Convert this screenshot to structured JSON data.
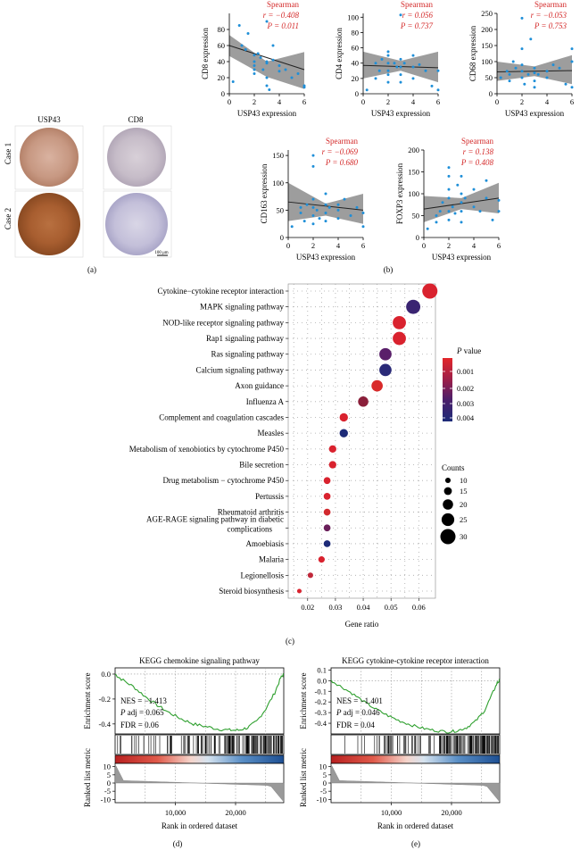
{
  "colors": {
    "red": "#d42a2a",
    "blue": "#1f8fd8",
    "band": "#8c8c8c",
    "dot_grid": "#a8a8a8",
    "navy": "#1d2b78",
    "purple": "#5a1f6a",
    "green": "#2fa02f"
  },
  "panel_a": {
    "col_labels": [
      "USP43",
      "CD8"
    ],
    "row_labels": [
      "Case 1",
      "Case 2"
    ],
    "scale_bar": "100 μm",
    "panel_label": "(a)"
  },
  "panel_b_label": "(b)",
  "panel_c_label": "(c)",
  "panel_d_label": "(d)",
  "panel_e_label": "(e)",
  "chart_data": [
    {
      "type": "scatter",
      "id": "cd8",
      "xlabel": "USP43 expression",
      "ylabel": "CD8 expression",
      "xlim": [
        0,
        6
      ],
      "ylim": [
        0,
        100
      ],
      "xticks": [
        0,
        2,
        4,
        6
      ],
      "yticks": [
        0,
        20,
        40,
        60,
        80
      ],
      "stat_label": "Spearman",
      "r": "r = −0.408",
      "p": "P = 0.011",
      "fit": [
        60,
        30
      ],
      "ci": [
        [
          47,
          73
        ],
        [
          21,
          40
        ],
        [
          6,
          52
        ]
      ],
      "points": [
        [
          0.3,
          15
        ],
        [
          0.8,
          85
        ],
        [
          1,
          60
        ],
        [
          1.3,
          55
        ],
        [
          1.5,
          75
        ],
        [
          2,
          48
        ],
        [
          2,
          40
        ],
        [
          2,
          35
        ],
        [
          2,
          30
        ],
        [
          2,
          25
        ],
        [
          2.3,
          50
        ],
        [
          2.5,
          45
        ],
        [
          2.7,
          30
        ],
        [
          3,
          90
        ],
        [
          3,
          40
        ],
        [
          3,
          38
        ],
        [
          3,
          20
        ],
        [
          3,
          10
        ],
        [
          3.2,
          5
        ],
        [
          3.5,
          60
        ],
        [
          3.5,
          42
        ],
        [
          4,
          35
        ],
        [
          4,
          28
        ],
        [
          4.5,
          30
        ],
        [
          5,
          20
        ],
        [
          5.5,
          25
        ],
        [
          6,
          10
        ],
        [
          6,
          8
        ]
      ]
    },
    {
      "type": "scatter",
      "id": "cd4",
      "xlabel": "USP43 expression",
      "ylabel": "CD4 expression",
      "xlim": [
        0,
        6
      ],
      "ylim": [
        0,
        105
      ],
      "xticks": [
        0,
        2,
        4,
        6
      ],
      "yticks": [
        0,
        20,
        40,
        60,
        80,
        100
      ],
      "stat_label": "Spearman",
      "r": "r = 0.056",
      "p": "P = 0.737",
      "fit": [
        37,
        34
      ],
      "ci": [
        [
          20,
          55
        ],
        [
          30,
          43
        ],
        [
          15,
          55
        ]
      ],
      "points": [
        [
          0.3,
          5
        ],
        [
          1,
          20
        ],
        [
          1,
          40
        ],
        [
          1.3,
          30
        ],
        [
          1.5,
          45
        ],
        [
          2,
          55
        ],
        [
          2,
          50
        ],
        [
          2,
          40
        ],
        [
          2,
          30
        ],
        [
          2,
          25
        ],
        [
          2,
          15
        ],
        [
          2.5,
          40
        ],
        [
          2.7,
          35
        ],
        [
          3,
          103
        ],
        [
          3,
          45
        ],
        [
          3,
          35
        ],
        [
          3,
          25
        ],
        [
          3,
          15
        ],
        [
          3.3,
          40
        ],
        [
          4,
          50
        ],
        [
          4,
          35
        ],
        [
          4,
          20
        ],
        [
          4.5,
          38
        ],
        [
          5,
          30
        ],
        [
          5.5,
          10
        ],
        [
          6,
          30
        ],
        [
          6,
          5
        ]
      ]
    },
    {
      "type": "scatter",
      "id": "cd68",
      "xlabel": "USP43 expression",
      "ylabel": "CD68 expression",
      "xlim": [
        0,
        6
      ],
      "ylim": [
        0,
        250
      ],
      "xticks": [
        0,
        2,
        4,
        6
      ],
      "yticks": [
        0,
        50,
        100,
        150,
        200,
        250
      ],
      "stat_label": "Spearman",
      "r": "r = −0.053",
      "p": "P = 0.753",
      "fit": [
        68,
        72
      ],
      "ci": [
        [
          40,
          100
        ],
        [
          55,
          85
        ],
        [
          30,
          120
        ]
      ],
      "points": [
        [
          0.3,
          50
        ],
        [
          0.8,
          70
        ],
        [
          1,
          60
        ],
        [
          1,
          40
        ],
        [
          1.3,
          100
        ],
        [
          1.5,
          80
        ],
        [
          2,
          235
        ],
        [
          2,
          140
        ],
        [
          2,
          90
        ],
        [
          2,
          70
        ],
        [
          2,
          50
        ],
        [
          2.2,
          30
        ],
        [
          2.5,
          60
        ],
        [
          2.7,
          170
        ],
        [
          3,
          80
        ],
        [
          3,
          65
        ],
        [
          3,
          40
        ],
        [
          3,
          20
        ],
        [
          3.3,
          60
        ],
        [
          4,
          70
        ],
        [
          4,
          50
        ],
        [
          4.5,
          90
        ],
        [
          5,
          80
        ],
        [
          5.5,
          30
        ],
        [
          6,
          140
        ],
        [
          6,
          100
        ],
        [
          6,
          20
        ]
      ]
    },
    {
      "type": "scatter",
      "id": "cd163",
      "xlabel": "USP43 expression",
      "ylabel": "CD163 expression",
      "xlim": [
        0,
        6
      ],
      "ylim": [
        0,
        160
      ],
      "xticks": [
        0,
        2,
        4,
        6
      ],
      "yticks": [
        0,
        50,
        100,
        150
      ],
      "stat_label": "Spearman",
      "r": "r = −0.069",
      "p": "P = 0.680",
      "fit": [
        65,
        50
      ],
      "ci": [
        [
          30,
          100
        ],
        [
          40,
          62
        ],
        [
          25,
          80
        ]
      ],
      "points": [
        [
          0.3,
          20
        ],
        [
          1,
          55
        ],
        [
          1,
          45
        ],
        [
          1.3,
          30
        ],
        [
          1.5,
          60
        ],
        [
          2,
          150
        ],
        [
          2,
          130
        ],
        [
          2,
          70
        ],
        [
          2,
          55
        ],
        [
          2,
          40
        ],
        [
          2,
          25
        ],
        [
          2.3,
          50
        ],
        [
          2.5,
          35
        ],
        [
          3,
          80
        ],
        [
          3,
          60
        ],
        [
          3,
          45
        ],
        [
          3,
          30
        ],
        [
          3.3,
          55
        ],
        [
          4,
          60
        ],
        [
          4,
          50
        ],
        [
          4,
          35
        ],
        [
          4.5,
          70
        ],
        [
          5,
          40
        ],
        [
          5.5,
          55
        ],
        [
          6,
          45
        ],
        [
          6,
          20
        ]
      ]
    },
    {
      "type": "scatter",
      "id": "foxp3",
      "xlabel": "USP43 expression",
      "ylabel": "FOXP3 expression",
      "xlim": [
        0,
        6
      ],
      "ylim": [
        0,
        200
      ],
      "xticks": [
        0,
        2,
        4,
        6
      ],
      "yticks": [
        0,
        50,
        100,
        150,
        200
      ],
      "stat_label": "Spearman",
      "r": "r = 0.138",
      "p": "P = 0.408",
      "fit": [
        65,
        90
      ],
      "ci": [
        [
          35,
          95
        ],
        [
          65,
          90
        ],
        [
          55,
          125
        ]
      ],
      "points": [
        [
          0.3,
          20
        ],
        [
          1,
          50
        ],
        [
          1,
          35
        ],
        [
          1.3,
          60
        ],
        [
          1.5,
          80
        ],
        [
          2,
          160
        ],
        [
          2,
          140
        ],
        [
          2,
          110
        ],
        [
          2,
          90
        ],
        [
          2,
          60
        ],
        [
          2,
          40
        ],
        [
          2.3,
          70
        ],
        [
          2.5,
          55
        ],
        [
          2.7,
          120
        ],
        [
          3,
          140
        ],
        [
          3,
          100
        ],
        [
          3,
          80
        ],
        [
          3,
          60
        ],
        [
          3,
          35
        ],
        [
          3.3,
          90
        ],
        [
          4,
          110
        ],
        [
          4,
          70
        ],
        [
          4.5,
          60
        ],
        [
          5,
          130
        ],
        [
          5,
          90
        ],
        [
          5.5,
          40
        ],
        [
          6,
          85
        ],
        [
          6,
          60
        ]
      ]
    },
    {
      "type": "dot",
      "id": "kegg_dot",
      "xlabel": "Gene ratio",
      "xlim": [
        0.013,
        0.066
      ],
      "xticks": [
        0.02,
        0.03,
        0.04,
        0.05,
        0.06
      ],
      "legend_p_title": "P value",
      "legend_p_ticks": [
        "0.001",
        "0.002",
        "0.003",
        "0.004"
      ],
      "legend_counts_title": "Counts",
      "legend_counts": [
        10,
        15,
        20,
        25,
        30
      ],
      "terms": [
        {
          "label": "Cytokine−cytokine receptor interaction",
          "ratio": 0.064,
          "count": 30,
          "color": "#d9222e"
        },
        {
          "label": "MAPK signaling pathway",
          "ratio": 0.058,
          "count": 28,
          "color": "#3a2472"
        },
        {
          "label": "NOD-like receptor signaling pathway",
          "ratio": 0.053,
          "count": 26,
          "color": "#d9222e"
        },
        {
          "label": "Rap1 signaling pathway",
          "ratio": 0.053,
          "count": 26,
          "color": "#d9222e"
        },
        {
          "label": "Ras signaling pathway",
          "ratio": 0.048,
          "count": 24,
          "color": "#5a1f6a"
        },
        {
          "label": "Calcium signaling pathway",
          "ratio": 0.048,
          "count": 24,
          "color": "#2a2a78"
        },
        {
          "label": "Axon guidance",
          "ratio": 0.045,
          "count": 22,
          "color": "#d92a2a"
        },
        {
          "label": "Influenza A",
          "ratio": 0.04,
          "count": 20,
          "color": "#8a1f3a"
        },
        {
          "label": "Complement and coagulation cascades",
          "ratio": 0.033,
          "count": 16,
          "color": "#d9222e"
        },
        {
          "label": "Measles",
          "ratio": 0.033,
          "count": 16,
          "color": "#1d2b78"
        },
        {
          "label": "Metabolism of xenobiotics by cytochrome P450",
          "ratio": 0.029,
          "count": 14,
          "color": "#d9222e"
        },
        {
          "label": "Bile secretion",
          "ratio": 0.029,
          "count": 14,
          "color": "#d9222e"
        },
        {
          "label": "Drug metabolism − cytochrome P450",
          "ratio": 0.027,
          "count": 13,
          "color": "#d9222e"
        },
        {
          "label": "Pertussis",
          "ratio": 0.027,
          "count": 13,
          "color": "#d9222e"
        },
        {
          "label": "Rheumatoid arthritis",
          "ratio": 0.027,
          "count": 13,
          "color": "#d22a2e"
        },
        {
          "label": "AGE-RAGE signaling pathway in diabetic complications",
          "ratio": 0.027,
          "count": 13,
          "color": "#6a1f5a"
        },
        {
          "label": "Amoebiasis",
          "ratio": 0.027,
          "count": 13,
          "color": "#1d2b78"
        },
        {
          "label": "Malaria",
          "ratio": 0.025,
          "count": 12,
          "color": "#d9222e"
        },
        {
          "label": "Legionellosis",
          "ratio": 0.021,
          "count": 10,
          "color": "#c0283a"
        },
        {
          "label": "Steroid biosynthesis",
          "ratio": 0.017,
          "count": 8,
          "color": "#d9222e"
        }
      ]
    },
    {
      "type": "line",
      "id": "gsea_chemokine",
      "title": "KEGG chemokine signaling pathway",
      "ylabel": "Enrichment score",
      "ylabel2": "Ranked list metric",
      "xlabel": "Rank in ordered dataset",
      "ylim": [
        -0.48,
        0.05
      ],
      "yticks": [
        0.0,
        -0.2,
        -0.4
      ],
      "xlim": [
        0,
        28000
      ],
      "xticks": [
        10000,
        20000
      ],
      "xtick_labels": [
        "10,000",
        "20,000"
      ],
      "metric_yticks": [
        10,
        5,
        0,
        -5,
        -10
      ],
      "nes": "NES = −1.413",
      "padj": "P adj = 0.065",
      "fdr": "FDR = 0.06",
      "es_curve": [
        [
          0,
          0
        ],
        [
          1000,
          -0.04
        ],
        [
          3000,
          -0.1
        ],
        [
          5000,
          -0.18
        ],
        [
          7000,
          -0.25
        ],
        [
          9000,
          -0.31
        ],
        [
          11000,
          -0.36
        ],
        [
          13000,
          -0.4
        ],
        [
          15000,
          -0.42
        ],
        [
          17000,
          -0.44
        ],
        [
          19000,
          -0.45
        ],
        [
          20500,
          -0.45
        ],
        [
          22000,
          -0.43
        ],
        [
          23500,
          -0.38
        ],
        [
          25000,
          -0.28
        ],
        [
          26500,
          -0.15
        ],
        [
          27500,
          -0.03
        ],
        [
          28000,
          0
        ]
      ]
    },
    {
      "type": "line",
      "id": "gsea_cytokine",
      "title": "KEGG cytokine-cytokine receptor interaction",
      "ylabel": "Enrichment score",
      "ylabel2": "Ranked list metric",
      "xlabel": "Rank in ordered dataset",
      "ylim": [
        -0.5,
        0.12
      ],
      "yticks": [
        0.1,
        0.0,
        -0.1,
        -0.2,
        -0.3,
        -0.4
      ],
      "xlim": [
        0,
        28000
      ],
      "xticks": [
        10000,
        20000
      ],
      "xtick_labels": [
        "10,000",
        "20,000"
      ],
      "metric_yticks": [
        10,
        5,
        0,
        -5,
        -10
      ],
      "nes": "NES = −1.401",
      "padj": "P adj = 0.046",
      "fdr": "FDR = 0.04",
      "es_curve": [
        [
          0,
          0
        ],
        [
          1500,
          -0.05
        ],
        [
          3500,
          -0.12
        ],
        [
          5500,
          -0.2
        ],
        [
          7500,
          -0.27
        ],
        [
          9500,
          -0.33
        ],
        [
          11500,
          -0.38
        ],
        [
          13500,
          -0.42
        ],
        [
          15500,
          -0.45
        ],
        [
          17500,
          -0.47
        ],
        [
          19500,
          -0.48
        ],
        [
          21000,
          -0.47
        ],
        [
          22500,
          -0.44
        ],
        [
          24000,
          -0.38
        ],
        [
          25500,
          -0.28
        ],
        [
          26800,
          -0.12
        ],
        [
          27600,
          -0.02
        ],
        [
          28000,
          0
        ]
      ]
    }
  ]
}
